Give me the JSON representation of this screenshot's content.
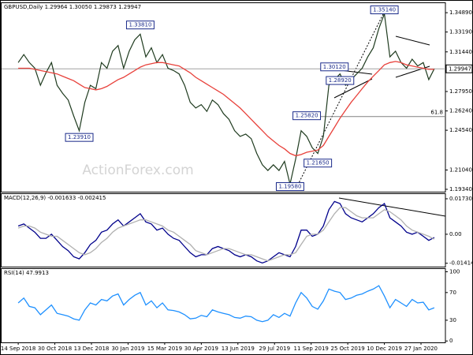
{
  "chart_data": [
    {
      "type": "line",
      "title": "GBPUSD,Daily 1.29964 1.30050 1.29873 1.29947",
      "watermark": "ActionForex.com",
      "x": [
        0,
        1,
        2,
        3,
        4,
        5,
        6,
        7,
        8,
        9,
        10,
        11,
        12,
        13,
        14,
        15,
        16,
        17,
        18,
        19,
        20,
        21,
        22,
        23,
        24,
        25,
        26,
        27,
        28,
        29,
        30,
        31,
        32,
        33,
        34,
        35,
        36,
        37,
        38,
        39,
        40,
        41,
        42,
        43,
        44,
        45,
        46,
        47,
        48,
        49,
        50,
        51,
        52,
        53,
        54,
        55,
        56,
        57,
        58,
        59,
        60,
        61,
        62,
        63,
        64,
        65,
        66,
        67,
        68,
        69,
        70,
        71,
        72,
        73,
        74,
        75
      ],
      "xlim": [
        -3,
        77
      ],
      "ylim": [
        1.1913,
        1.3573
      ],
      "yticks": [
        {
          "value": 1.3489,
          "label": "1.34890"
        },
        {
          "value": 1.3319,
          "label": "1.33190"
        },
        {
          "value": 1.3144,
          "label": "1.31440"
        },
        {
          "value": 1.2795,
          "label": "1.27950"
        },
        {
          "value": 1.2624,
          "label": "1.26240"
        },
        {
          "value": 1.2454,
          "label": "1.24540"
        },
        {
          "value": 1.2104,
          "label": "1.21040"
        },
        {
          "value": 1.1934,
          "label": "1.19340"
        }
      ],
      "series": [
        {
          "name": "GBPUSD",
          "color": "#1f3b1f",
          "values": [
            1.305,
            1.312,
            1.305,
            1.3,
            1.285,
            1.296,
            1.305,
            1.285,
            1.278,
            1.272,
            1.258,
            1.245,
            1.27,
            1.285,
            1.282,
            1.305,
            1.3,
            1.315,
            1.32,
            1.3,
            1.315,
            1.325,
            1.33,
            1.31,
            1.318,
            1.305,
            1.312,
            1.3,
            1.298,
            1.295,
            1.285,
            1.27,
            1.265,
            1.268,
            1.262,
            1.272,
            1.268,
            1.26,
            1.255,
            1.245,
            1.24,
            1.242,
            1.238,
            1.225,
            1.215,
            1.21,
            1.215,
            1.21,
            1.218,
            1.198,
            1.22,
            1.245,
            1.24,
            1.23,
            1.225,
            1.24,
            1.285,
            1.29,
            1.295,
            1.285,
            1.29,
            1.295,
            1.3,
            1.31,
            1.318,
            1.335,
            1.348,
            1.31,
            1.315,
            1.305,
            1.3,
            1.308,
            1.302,
            1.305,
            1.29,
            1.2995
          ]
        },
        {
          "name": "MA",
          "color": "#e8413b",
          "values": [
            1.3,
            1.3,
            1.3,
            1.299,
            1.298,
            1.297,
            1.296,
            1.295,
            1.293,
            1.291,
            1.289,
            1.286,
            1.283,
            1.282,
            1.281,
            1.282,
            1.284,
            1.287,
            1.29,
            1.292,
            1.295,
            1.298,
            1.301,
            1.303,
            1.304,
            1.305,
            1.305,
            1.304,
            1.303,
            1.302,
            1.299,
            1.296,
            1.292,
            1.289,
            1.286,
            1.283,
            1.28,
            1.277,
            1.273,
            1.269,
            1.265,
            1.26,
            1.255,
            1.25,
            1.245,
            1.24,
            1.236,
            1.232,
            1.229,
            1.225,
            1.223,
            1.224,
            1.226,
            1.227,
            1.228,
            1.232,
            1.24,
            1.248,
            1.256,
            1.263,
            1.27,
            1.276,
            1.282,
            1.288,
            1.293,
            1.298,
            1.303,
            1.305,
            1.306,
            1.305,
            1.303,
            1.302,
            1.301,
            1.3,
            1.299,
            1.299
          ]
        }
      ],
      "annotations": [
        {
          "x": 66,
          "value": 1.3514,
          "label": "1.35140"
        },
        {
          "x": 22,
          "value": 1.3381,
          "label": "1.33810"
        },
        {
          "x": 57,
          "value": 1.3012,
          "label": "1.30120"
        },
        {
          "x": 58,
          "value": 1.2892,
          "label": "1.28920"
        },
        {
          "x": 52,
          "value": 1.2582,
          "label": "1.25820"
        },
        {
          "x": 54,
          "value": 1.2165,
          "label": "1.21650"
        },
        {
          "x": 49,
          "value": 1.1958,
          "label": "1.19580"
        },
        {
          "x": 11,
          "value": 1.2391,
          "label": "1.23910"
        }
      ],
      "fib_level": {
        "value": 1.2575,
        "label": "61.8"
      },
      "last_price": {
        "value": 1.29947,
        "label": "1.29947"
      }
    },
    {
      "type": "line",
      "title": "MACD(12,26,9) -0.001633 -0.002415",
      "x": [
        0,
        1,
        2,
        3,
        4,
        5,
        6,
        7,
        8,
        9,
        10,
        11,
        12,
        13,
        14,
        15,
        16,
        17,
        18,
        19,
        20,
        21,
        22,
        23,
        24,
        25,
        26,
        27,
        28,
        29,
        30,
        31,
        32,
        33,
        34,
        35,
        36,
        37,
        38,
        39,
        40,
        41,
        42,
        43,
        44,
        45,
        46,
        47,
        48,
        49,
        50,
        51,
        52,
        53,
        54,
        55,
        56,
        57,
        58,
        59,
        60,
        61,
        62,
        63,
        64,
        65,
        66,
        67,
        68,
        69,
        70,
        71,
        72,
        73,
        74,
        75
      ],
      "xlim": [
        -3,
        77
      ],
      "ylim": [
        -0.0158,
        0.0196
      ],
      "yticks": [
        0.017302,
        {
          "value": 0,
          "label": "0.00"
        },
        -0.014148
      ],
      "series": [
        {
          "name": "MACD",
          "color": "#00008b",
          "values": [
            0.004,
            0.005,
            0.003,
            0.001,
            -0.002,
            -0.002,
            0.0,
            -0.003,
            -0.006,
            -0.008,
            -0.011,
            -0.012,
            -0.009,
            -0.005,
            -0.003,
            0.001,
            0.002,
            0.005,
            0.007,
            0.004,
            0.006,
            0.008,
            0.01,
            0.006,
            0.005,
            0.002,
            0.003,
            0.0,
            -0.002,
            -0.003,
            -0.006,
            -0.009,
            -0.011,
            -0.01,
            -0.01,
            -0.007,
            -0.006,
            -0.007,
            -0.008,
            -0.01,
            -0.011,
            -0.01,
            -0.011,
            -0.013,
            -0.014,
            -0.013,
            -0.011,
            -0.009,
            -0.01,
            -0.011,
            -0.006,
            0.002,
            0.002,
            -0.001,
            0.0,
            0.004,
            0.012,
            0.016,
            0.015,
            0.01,
            0.008,
            0.007,
            0.006,
            0.008,
            0.01,
            0.013,
            0.015,
            0.008,
            0.006,
            0.004,
            0.001,
            0.0,
            0.001,
            -0.001,
            -0.003,
            -0.0016
          ]
        },
        {
          "name": "Signal",
          "color": "#b0b0b0",
          "values": [
            0.003,
            0.004,
            0.004,
            0.003,
            0.001,
            0.0,
            -0.001,
            -0.001,
            -0.003,
            -0.005,
            -0.007,
            -0.009,
            -0.01,
            -0.009,
            -0.007,
            -0.004,
            -0.002,
            0.001,
            0.003,
            0.004,
            0.005,
            0.006,
            0.007,
            0.007,
            0.006,
            0.005,
            0.004,
            0.002,
            0.001,
            -0.001,
            -0.003,
            -0.005,
            -0.008,
            -0.009,
            -0.01,
            -0.009,
            -0.008,
            -0.007,
            -0.007,
            -0.008,
            -0.009,
            -0.01,
            -0.01,
            -0.011,
            -0.012,
            -0.013,
            -0.012,
            -0.011,
            -0.01,
            -0.01,
            -0.009,
            -0.005,
            -0.001,
            0.0,
            0.0,
            0.002,
            0.006,
            0.01,
            0.013,
            0.013,
            0.011,
            0.009,
            0.008,
            0.008,
            0.008,
            0.01,
            0.012,
            0.011,
            0.009,
            0.007,
            0.004,
            0.002,
            0.001,
            0.0,
            -0.001,
            -0.0024
          ]
        }
      ]
    },
    {
      "type": "line",
      "title": "RSI(14) 47.9913",
      "x": [
        0,
        1,
        2,
        3,
        4,
        5,
        6,
        7,
        8,
        9,
        10,
        11,
        12,
        13,
        14,
        15,
        16,
        17,
        18,
        19,
        20,
        21,
        22,
        23,
        24,
        25,
        26,
        27,
        28,
        29,
        30,
        31,
        32,
        33,
        34,
        35,
        36,
        37,
        38,
        39,
        40,
        41,
        42,
        43,
        44,
        45,
        46,
        47,
        48,
        49,
        50,
        51,
        52,
        53,
        54,
        55,
        56,
        57,
        58,
        59,
        60,
        61,
        62,
        63,
        64,
        65,
        66,
        67,
        68,
        69,
        70,
        71,
        72,
        73,
        74,
        75
      ],
      "xlim": [
        -3,
        77
      ],
      "ylim": [
        -2,
        104
      ],
      "yticks": [
        100,
        70,
        30,
        0
      ],
      "xticks": [
        {
          "value": 0,
          "label": "14 Sep 2018"
        },
        {
          "value": 6.6,
          "label": "30 Oct 2018"
        },
        {
          "value": 13.2,
          "label": "13 Dec 2018"
        },
        {
          "value": 19.8,
          "label": "30 Jan 2019"
        },
        {
          "value": 26.4,
          "label": "15 Mar 2019"
        },
        {
          "value": 33,
          "label": "30 Apr 2019"
        },
        {
          "value": 39.6,
          "label": "13 Jun 2019"
        },
        {
          "value": 46.2,
          "label": "29 Jul 2019"
        },
        {
          "value": 52.8,
          "label": "11 Sep 2019"
        },
        {
          "value": 59.4,
          "label": "25 Oct 2019"
        },
        {
          "value": 66,
          "label": "10 Dec 2019"
        },
        {
          "value": 72.6,
          "label": "27 Jan 2020"
        }
      ],
      "series": [
        {
          "name": "RSI",
          "color": "#1e90ff",
          "values": [
            55,
            62,
            50,
            48,
            38,
            45,
            52,
            40,
            38,
            36,
            32,
            30,
            45,
            55,
            52,
            60,
            58,
            65,
            68,
            52,
            60,
            66,
            70,
            52,
            58,
            48,
            55,
            45,
            44,
            42,
            38,
            32,
            33,
            37,
            35,
            45,
            42,
            40,
            38,
            34,
            33,
            36,
            35,
            30,
            28,
            30,
            38,
            34,
            40,
            36,
            55,
            70,
            62,
            50,
            46,
            58,
            75,
            72,
            70,
            60,
            62,
            66,
            68,
            72,
            75,
            80,
            65,
            48,
            60,
            55,
            50,
            60,
            55,
            56,
            45,
            47.99
          ]
        }
      ]
    }
  ]
}
